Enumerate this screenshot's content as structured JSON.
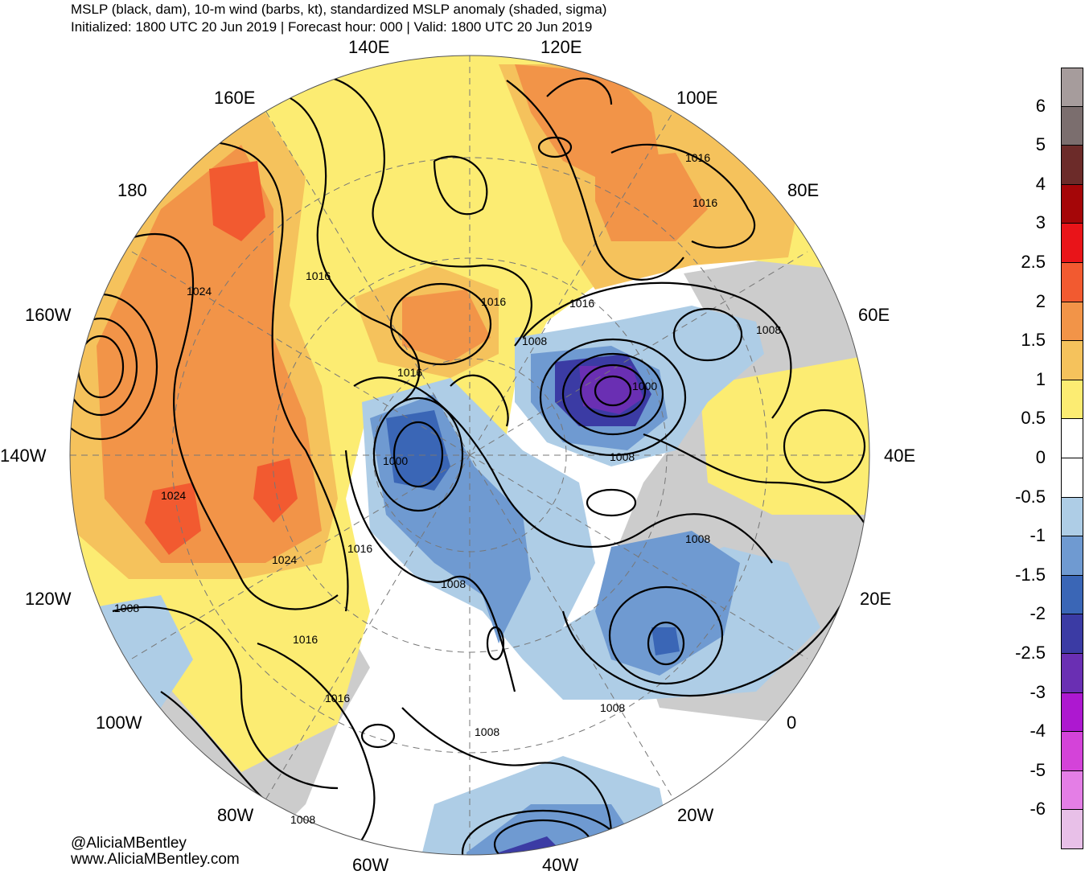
{
  "header": {
    "title": "MSLP (black, dam), 10-m wind (barbs, kt), standardized MSLP anomaly (shaded, sigma)",
    "subtitle": "Initialized: 1800 UTC 20 Jun 2019 | Forecast hour: 000 | Valid: 1800 UTC 20 Jun 2019"
  },
  "longitude_labels": {
    "e140": "140E",
    "e120": "120E",
    "e160": "160E",
    "e100": "100E",
    "e180": "180",
    "e80": "80E",
    "w160": "160W",
    "e60": "60E",
    "w140": "140W",
    "e40": "40E",
    "w120": "120W",
    "e20": "20E",
    "w100": "100W",
    "zero": "0",
    "w80": "80W",
    "w20": "20W",
    "w60": "60W",
    "w40": "40W"
  },
  "contour_labels": {
    "c1": "1024",
    "c2": "1016",
    "c3": "1016",
    "c4": "1016",
    "c5": "1016",
    "c6": "1016",
    "c7": "1016",
    "c8": "1008",
    "c9": "1008",
    "c10": "1000",
    "c11": "1008",
    "c12": "1000",
    "c13": "1024",
    "c14": "1024",
    "c15": "1016",
    "c16": "1008",
    "c17": "1008",
    "c18": "1008",
    "c19": "1016",
    "c20": "1016",
    "c21": "1008",
    "c22": "1008",
    "c23": "1008"
  },
  "colorbar": {
    "colors": [
      "#a69c9c",
      "#7b6e6e",
      "#6c2b29",
      "#a50608",
      "#e91419",
      "#f25a30",
      "#f29448",
      "#f5c25c",
      "#fcec72",
      "#ffffff",
      "#ffffff",
      "#aecde6",
      "#6f9ad1",
      "#3a66b6",
      "#3b3ba4",
      "#6a2fb3",
      "#ad18d0",
      "#d443d9",
      "#e47ee6",
      "#e8c0e8"
    ],
    "ticks": [
      "6",
      "5",
      "4",
      "3",
      "2.5",
      "2",
      "1.5",
      "1",
      "0.5",
      "0",
      "-0.5",
      "-1",
      "-1.5",
      "-2",
      "-2.5",
      "-3",
      "-4",
      "-5",
      "-6"
    ]
  },
  "credits": {
    "handle": "@AliciaMBentley",
    "site": "www.AliciaMBentley.com"
  }
}
